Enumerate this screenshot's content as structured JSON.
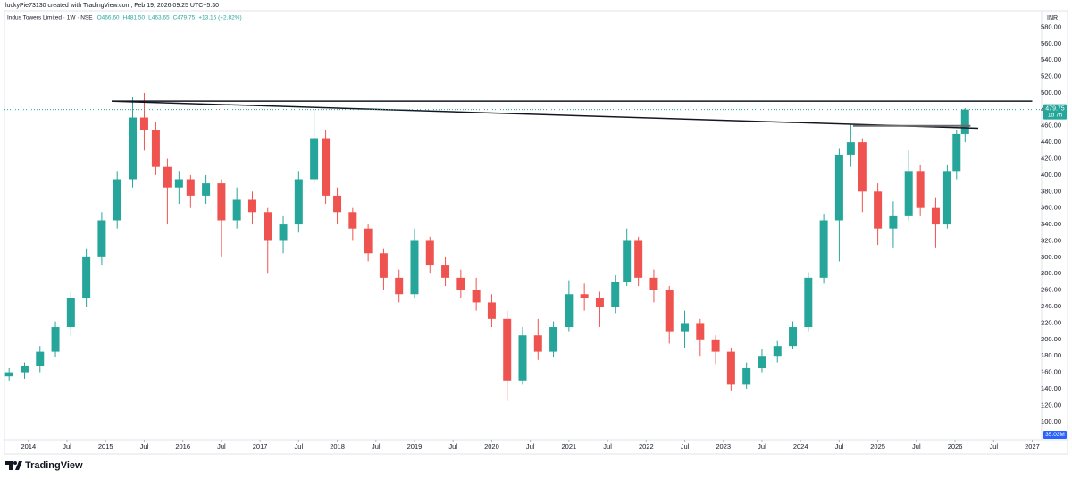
{
  "chart_data": {
    "type": "candlestick",
    "caption": "luckyPie73130 created with TradingView.com, Feb 19, 2026 09:25 UTC+5:30",
    "title": "Indus Towers Limited · 1W · NSE",
    "ohlc": [
      "O466.60",
      "H481.50",
      "L463.65",
      "C479.75",
      "+13.15 (+2.82%)"
    ],
    "currency": "INR",
    "countdown": "1d 7h",
    "volume_label": "35.03M",
    "brand": "TradingView",
    "up_color": "#26a69a",
    "down_color": "#ef5350",
    "last_price": 479.75,
    "x": [
      2013.75,
      2013.95,
      2014.15,
      2014.35,
      2014.55,
      2014.75,
      2014.95,
      2015.15,
      2015.35,
      2015.5,
      2015.65,
      2015.8,
      2015.95,
      2016.1,
      2016.3,
      2016.5,
      2016.7,
      2016.9,
      2017.1,
      2017.3,
      2017.5,
      2017.7,
      2017.85,
      2018.0,
      2018.2,
      2018.4,
      2018.6,
      2018.8,
      2019.0,
      2019.2,
      2019.4,
      2019.6,
      2019.8,
      2020.0,
      2020.2,
      2020.4,
      2020.6,
      2020.8,
      2021.0,
      2021.2,
      2021.4,
      2021.6,
      2021.75,
      2021.9,
      2022.1,
      2022.3,
      2022.5,
      2022.7,
      2022.9,
      2023.1,
      2023.3,
      2023.5,
      2023.7,
      2023.9,
      2024.1,
      2024.3,
      2024.5,
      2024.65,
      2024.8,
      2025.0,
      2025.2,
      2025.4,
      2025.55,
      2025.75,
      2025.9,
      2026.02,
      2026.13
    ],
    "open": [
      155,
      160,
      168,
      185,
      215,
      250,
      300,
      345,
      395,
      470,
      455,
      410,
      385,
      395,
      375,
      390,
      345,
      370,
      355,
      320,
      340,
      395,
      445,
      375,
      355,
      335,
      305,
      275,
      255,
      320,
      290,
      275,
      260,
      245,
      225,
      150,
      205,
      185,
      215,
      255,
      250,
      240,
      270,
      320,
      275,
      260,
      210,
      220,
      200,
      185,
      145,
      165,
      180,
      192,
      215,
      275,
      345,
      425,
      440,
      380,
      335,
      350,
      405,
      360,
      340,
      405,
      450
    ],
    "high": [
      165,
      172,
      192,
      222,
      258,
      310,
      355,
      405,
      495,
      500,
      465,
      420,
      405,
      400,
      400,
      395,
      385,
      380,
      360,
      350,
      405,
      480,
      455,
      385,
      360,
      340,
      310,
      285,
      335,
      325,
      300,
      285,
      275,
      255,
      235,
      215,
      225,
      222,
      272,
      268,
      258,
      278,
      335,
      325,
      285,
      265,
      235,
      225,
      205,
      190,
      172,
      188,
      198,
      222,
      282,
      352,
      432,
      462,
      445,
      390,
      368,
      430,
      412,
      372,
      412,
      455,
      481.5
    ],
    "low": [
      150,
      152,
      160,
      178,
      205,
      240,
      290,
      335,
      385,
      430,
      400,
      340,
      365,
      360,
      365,
      300,
      335,
      340,
      280,
      305,
      330,
      390,
      365,
      340,
      320,
      295,
      260,
      245,
      250,
      280,
      265,
      250,
      235,
      215,
      125,
      145,
      175,
      178,
      210,
      235,
      215,
      232,
      265,
      265,
      245,
      195,
      190,
      180,
      170,
      138,
      140,
      160,
      172,
      188,
      210,
      268,
      295,
      410,
      355,
      315,
      312,
      345,
      350,
      312,
      335,
      395,
      440
    ],
    "close": [
      160,
      168,
      185,
      215,
      250,
      300,
      345,
      395,
      470,
      455,
      410,
      385,
      395,
      375,
      390,
      345,
      370,
      355,
      320,
      340,
      395,
      445,
      375,
      355,
      335,
      305,
      275,
      255,
      320,
      290,
      275,
      260,
      245,
      225,
      150,
      205,
      185,
      215,
      255,
      250,
      240,
      270,
      320,
      275,
      260,
      210,
      220,
      200,
      185,
      145,
      165,
      180,
      192,
      215,
      275,
      345,
      425,
      440,
      380,
      335,
      350,
      405,
      360,
      340,
      405,
      450,
      479.75
    ],
    "trendlines": [
      {
        "x": [
          2015.08,
          2027.0
        ],
        "y": [
          490,
          490
        ]
      },
      {
        "x": [
          2015.08,
          2026.3
        ],
        "y": [
          490,
          457
        ]
      },
      {
        "x": [
          2024.68,
          2026.2
        ],
        "y": [
          460,
          460
        ]
      }
    ],
    "xlim": [
      2013.69,
      2027.11
    ],
    "xticks": [
      2014,
      {
        "value": 2014.5,
        "label": "Jul"
      },
      2015,
      {
        "value": 2015.5,
        "label": "Jul"
      },
      2016,
      {
        "value": 2016.5,
        "label": "Jul"
      },
      2017,
      {
        "value": 2017.5,
        "label": "Jul"
      },
      2018,
      {
        "value": 2018.5,
        "label": "Jul"
      },
      2019,
      {
        "value": 2019.5,
        "label": "Jul"
      },
      2020,
      {
        "value": 2020.5,
        "label": "Jul"
      },
      2021,
      {
        "value": 2021.5,
        "label": "Jul"
      },
      2022,
      {
        "value": 2022.5,
        "label": "Jul"
      },
      2023,
      {
        "value": 2023.5,
        "label": "Jul"
      },
      2024,
      {
        "value": 2024.5,
        "label": "Jul"
      },
      2025,
      {
        "value": 2025.5,
        "label": "Jul"
      },
      2026,
      {
        "value": 2026.5,
        "label": "Jul"
      },
      2027
    ],
    "ylim": [
      78,
      600
    ],
    "yticks": [
      {
        "value": 100,
        "label": "100.00"
      },
      {
        "value": 120,
        "label": "120.00"
      },
      {
        "value": 140,
        "label": "140.00"
      },
      {
        "value": 160,
        "label": "160.00"
      },
      {
        "value": 180,
        "label": "180.00"
      },
      {
        "value": 200,
        "label": "200.00"
      },
      {
        "value": 220,
        "label": "220.00"
      },
      {
        "value": 240,
        "label": "240.00"
      },
      {
        "value": 260,
        "label": "260.00"
      },
      {
        "value": 280,
        "label": "280.00"
      },
      {
        "value": 300,
        "label": "300.00"
      },
      {
        "value": 320,
        "label": "320.00"
      },
      {
        "value": 340,
        "label": "340.00"
      },
      {
        "value": 360,
        "label": "360.00"
      },
      {
        "value": 380,
        "label": "380.00"
      },
      {
        "value": 400,
        "label": "400.00"
      },
      {
        "value": 420,
        "label": "420.00"
      },
      {
        "value": 440,
        "label": "440.00"
      },
      {
        "value": 460,
        "label": "460.00"
      },
      {
        "value": 480,
        "label": "480.00"
      },
      {
        "value": 500,
        "label": "500.00"
      },
      {
        "value": 520,
        "label": "520.00"
      },
      {
        "value": 540,
        "label": "540.00"
      },
      {
        "value": 560,
        "label": "560.00"
      },
      {
        "value": 580,
        "label": "580.00"
      }
    ]
  }
}
